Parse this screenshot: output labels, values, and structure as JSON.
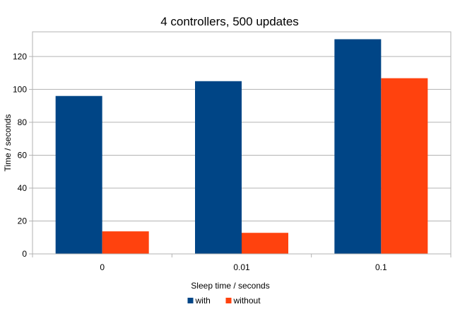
{
  "chart_data": {
    "type": "bar",
    "title": "4 controllers, 500 updates",
    "xlabel": "Sleep time / seconds",
    "ylabel": "Time / seconds",
    "categories": [
      "0",
      "0.01",
      "0.1"
    ],
    "ylim": [
      0,
      135
    ],
    "yticks": [
      0,
      20,
      40,
      60,
      80,
      100,
      120
    ],
    "grid": true,
    "legend_position": "bottom",
    "series": [
      {
        "name": "with",
        "color": "#004586",
        "values": [
          96,
          105,
          130.5
        ]
      },
      {
        "name": "without",
        "color": "#ff420e",
        "values": [
          13.7,
          12.8,
          106.8
        ]
      }
    ]
  }
}
